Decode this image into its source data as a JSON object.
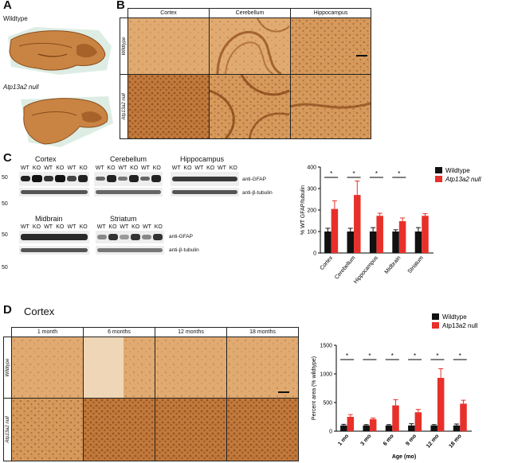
{
  "panel_labels": {
    "a": "A",
    "b": "B",
    "c": "C",
    "d": "D"
  },
  "panelA": {
    "wildtype": "Wildtype",
    "null": "Atp13a2 null"
  },
  "panelB": {
    "columns": [
      "Cortex",
      "Cerebellum",
      "Hippocampus"
    ],
    "rows": [
      "Wildtype",
      "Atp13a2 null"
    ]
  },
  "panelC": {
    "blots": [
      {
        "title": "Cortex",
        "lanes": [
          "WT",
          "KO",
          "WT",
          "KO",
          "WT",
          "KO"
        ]
      },
      {
        "title": "Cerebellum",
        "lanes": [
          "WT",
          "KO",
          "WT",
          "KO",
          "WT",
          "KO"
        ]
      },
      {
        "title": "Hippocampus",
        "lanes": [
          "WT",
          "KO",
          "WT",
          "KO",
          "WT",
          "KO"
        ]
      },
      {
        "title": "Midbrain",
        "lanes": [
          "WT",
          "KO",
          "WT",
          "KO",
          "WT",
          "KO"
        ]
      },
      {
        "title": "Striatum",
        "lanes": [
          "WT",
          "KO",
          "WT",
          "KO",
          "WT",
          "KO"
        ]
      }
    ],
    "mw": "50",
    "anti_gfap": "anti-GFAP",
    "anti_tubulin": "anti-β-tubulin"
  },
  "panelD": {
    "title": "Cortex",
    "columns": [
      "1 month",
      "6 months",
      "12 months",
      "18 months"
    ],
    "rows": [
      "Wildtype",
      "Atp13a2 null"
    ]
  },
  "colors": {
    "wildtype": "#111111",
    "null": "#e8302a",
    "tissue": "#c8864a"
  },
  "chart_data": [
    {
      "type": "bar",
      "categories": [
        "Cortex",
        "Cerebellum",
        "Hippocampus",
        "Midbrain",
        "Striatum"
      ],
      "series": [
        {
          "name": "Wildtype",
          "values": [
            100,
            100,
            100,
            100,
            100
          ],
          "errors": [
            15,
            15,
            18,
            8,
            18
          ]
        },
        {
          "name": "Atp13a2 null",
          "values": [
            205,
            270,
            173,
            148,
            173
          ],
          "errors": [
            38,
            65,
            12,
            15,
            10
          ]
        }
      ],
      "ylabel": "% WT GFAP/tubulin",
      "ylim": [
        0,
        400
      ],
      "yticks": [
        "0",
        "100",
        "200",
        "300",
        "400"
      ],
      "significance": [
        "*",
        "*",
        "*",
        "*"
      ],
      "legend": "top-right"
    },
    {
      "type": "bar",
      "categories": [
        "1 mo",
        "3 mo",
        "6 mo",
        "9 mo",
        "12 mo",
        "18 mo"
      ],
      "series": [
        {
          "name": "Wildtype",
          "values": [
            100,
            100,
            100,
            100,
            100,
            100
          ],
          "errors": [
            20,
            15,
            15,
            30,
            15,
            25
          ]
        },
        {
          "name": "Atp13a2 null",
          "values": [
            250,
            210,
            450,
            330,
            930,
            480
          ],
          "errors": [
            40,
            20,
            100,
            50,
            160,
            60
          ]
        }
      ],
      "xlabel": "Age (mo)",
      "ylabel": "Percent area (% wildtype)",
      "ylim": [
        0,
        1500
      ],
      "yticks": [
        "0",
        "500",
        "1000",
        "1500"
      ],
      "significance": [
        "*",
        "*",
        "*",
        "*",
        "*",
        "*"
      ],
      "legend": "top-right"
    }
  ]
}
